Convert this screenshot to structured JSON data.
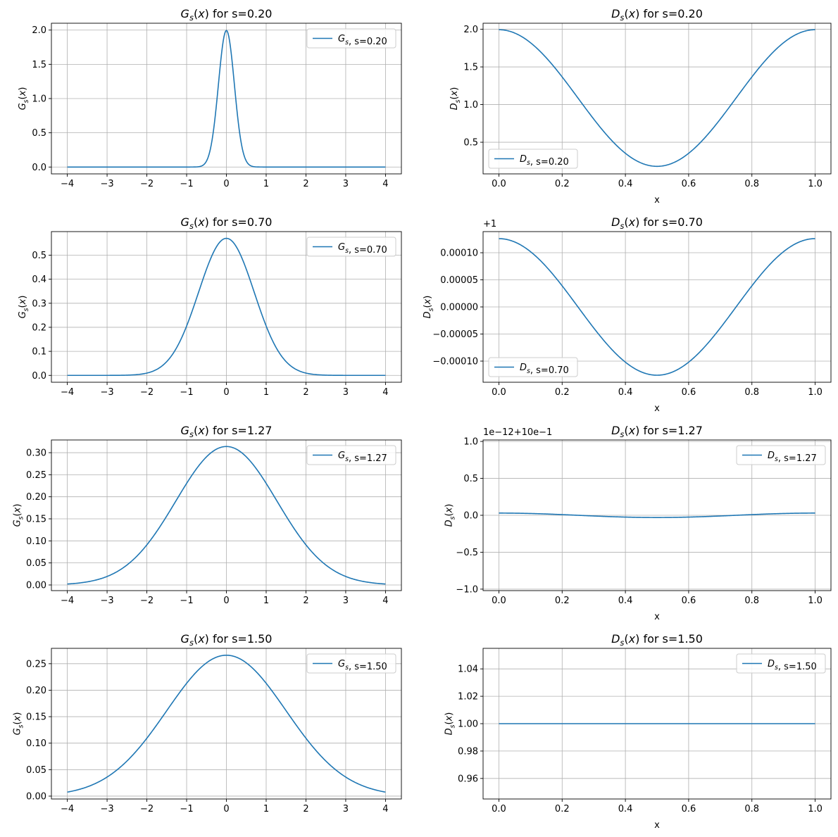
{
  "colors": {
    "line": "#1f77b4",
    "grid": "#b0b0b0",
    "axes": "#000000",
    "legend_border": "#cccccc"
  },
  "chart_data": [
    {
      "id": "g-s020",
      "type": "line",
      "kind": "gauss",
      "s": 0.2,
      "title": {
        "italic": "G",
        "sub": "s",
        "arg": "(x)",
        "rest": " for s=0.20"
      },
      "ylabel": {
        "italic": "G",
        "sub": "s",
        "arg": "(x)"
      },
      "xlabel": "",
      "xlim": [
        -4.4,
        4.4
      ],
      "ylim": [
        -0.1,
        2.1
      ],
      "xticks": [
        -4,
        -3,
        -2,
        -1,
        0,
        1,
        2,
        3,
        4
      ],
      "xtick_labels": [
        "−4",
        "−3",
        "−2",
        "−1",
        "0",
        "1",
        "2",
        "3",
        "4"
      ],
      "yticks": [
        0.0,
        0.5,
        1.0,
        1.5,
        2.0
      ],
      "ytick_labels": [
        "0.0",
        "0.5",
        "1.0",
        "1.5",
        "2.0"
      ],
      "y_offset_text": "",
      "grid": true,
      "legend": {
        "loc": "upper right",
        "italic": "G",
        "sub": "s",
        "rest": ", s=0.20"
      },
      "series": [
        {
          "name": "Gs, s=0.20",
          "x_range": [
            -4,
            4
          ],
          "peak_value": 1.995
        }
      ]
    },
    {
      "id": "d-s020",
      "type": "line",
      "kind": "cos",
      "s": 0.2,
      "title": {
        "italic": "D",
        "sub": "s",
        "arg": "(x)",
        "rest": " for s=0.20"
      },
      "ylabel": {
        "italic": "D",
        "sub": "s",
        "arg": "(x)"
      },
      "xlabel": "x",
      "xlim": [
        -0.05,
        1.05
      ],
      "ylim": [
        0.08,
        2.08
      ],
      "xticks": [
        0.0,
        0.2,
        0.4,
        0.6,
        0.8,
        1.0
      ],
      "xtick_labels": [
        "0.0",
        "0.2",
        "0.4",
        "0.6",
        "0.8",
        "1.0"
      ],
      "yticks": [
        0.5,
        1.0,
        1.5,
        2.0
      ],
      "ytick_labels": [
        "0.5",
        "1.0",
        "1.5",
        "2.0"
      ],
      "y_offset_text": "",
      "grid": true,
      "legend": {
        "loc": "lower left",
        "italic": "D",
        "sub": "s",
        "rest": ", s=0.20"
      },
      "series": [
        {
          "name": "Ds, s=0.20",
          "x_range": [
            0,
            1
          ],
          "center": 1.087,
          "amplitude": 0.907
        }
      ]
    },
    {
      "id": "g-s070",
      "type": "line",
      "kind": "gauss",
      "s": 0.7,
      "title": {
        "italic": "G",
        "sub": "s",
        "arg": "(x)",
        "rest": " for s=0.70"
      },
      "ylabel": {
        "italic": "G",
        "sub": "s",
        "arg": "(x)"
      },
      "xlabel": "",
      "xlim": [
        -4.4,
        4.4
      ],
      "ylim": [
        -0.0285,
        0.598
      ],
      "xticks": [
        -4,
        -3,
        -2,
        -1,
        0,
        1,
        2,
        3,
        4
      ],
      "xtick_labels": [
        "−4",
        "−3",
        "−2",
        "−1",
        "0",
        "1",
        "2",
        "3",
        "4"
      ],
      "yticks": [
        0.0,
        0.1,
        0.2,
        0.3,
        0.4,
        0.5
      ],
      "ytick_labels": [
        "0.0",
        "0.1",
        "0.2",
        "0.3",
        "0.4",
        "0.5"
      ],
      "y_offset_text": "",
      "grid": true,
      "legend": {
        "loc": "upper right",
        "italic": "G",
        "sub": "s",
        "rest": ", s=0.70"
      },
      "series": [
        {
          "name": "Gs, s=0.70",
          "x_range": [
            -4,
            4
          ],
          "peak_value": 0.57
        }
      ]
    },
    {
      "id": "d-s070",
      "type": "line",
      "kind": "cos",
      "s": 0.7,
      "title": {
        "italic": "D",
        "sub": "s",
        "arg": "(x)",
        "rest": " for s=0.70"
      },
      "ylabel": {
        "italic": "D",
        "sub": "s",
        "arg": "(x)"
      },
      "xlabel": "x",
      "xlim": [
        -0.05,
        1.05
      ],
      "ylim": [
        -0.000139,
        0.000139
      ],
      "xticks": [
        0.0,
        0.2,
        0.4,
        0.6,
        0.8,
        1.0
      ],
      "xtick_labels": [
        "0.0",
        "0.2",
        "0.4",
        "0.6",
        "0.8",
        "1.0"
      ],
      "yticks": [
        -0.0001,
        -5e-05,
        0.0,
        5e-05,
        0.0001
      ],
      "ytick_labels": [
        "−0.00010",
        "−0.00005",
        "0.00000",
        "0.00005",
        "0.00010"
      ],
      "y_offset_text": "+1",
      "grid": true,
      "legend": {
        "loc": "lower left",
        "italic": "D",
        "sub": "s",
        "rest": ", s=0.70"
      },
      "series": [
        {
          "name": "Ds, s=0.70",
          "x_range": [
            0,
            1
          ],
          "center": 0.0,
          "amplitude": 0.000126
        }
      ]
    },
    {
      "id": "g-s127",
      "type": "line",
      "kind": "gauss",
      "s": 1.27,
      "title": {
        "italic": "G",
        "sub": "s",
        "arg": "(x)",
        "rest": " for s=1.27"
      },
      "ylabel": {
        "italic": "G",
        "sub": "s",
        "arg": "(x)"
      },
      "xlabel": "",
      "xlim": [
        -4.4,
        4.4
      ],
      "ylim": [
        -0.0128,
        0.3288
      ],
      "xticks": [
        -4,
        -3,
        -2,
        -1,
        0,
        1,
        2,
        3,
        4
      ],
      "xtick_labels": [
        "−4",
        "−3",
        "−2",
        "−1",
        "0",
        "1",
        "2",
        "3",
        "4"
      ],
      "yticks": [
        0.0,
        0.05,
        0.1,
        0.15,
        0.2,
        0.25,
        0.3
      ],
      "ytick_labels": [
        "0.00",
        "0.05",
        "0.10",
        "0.15",
        "0.20",
        "0.25",
        "0.30"
      ],
      "y_offset_text": "",
      "grid": true,
      "legend": {
        "loc": "upper right",
        "italic": "G",
        "sub": "s",
        "rest": ", s=1.27"
      },
      "series": [
        {
          "name": "Gs, s=1.27",
          "x_range": [
            -4,
            4
          ],
          "peak_value": 0.314
        }
      ]
    },
    {
      "id": "d-s127",
      "type": "line",
      "kind": "cos",
      "s": 1.27,
      "title": {
        "italic": "D",
        "sub": "s",
        "arg": "(x)",
        "rest": " for s=1.27"
      },
      "ylabel": {
        "italic": "D",
        "sub": "s",
        "arg": "(x)"
      },
      "xlabel": "x",
      "xlim": [
        -0.05,
        1.05
      ],
      "ylim": [
        -1.02,
        1.02
      ],
      "xticks": [
        0.0,
        0.2,
        0.4,
        0.6,
        0.8,
        1.0
      ],
      "xtick_labels": [
        "0.0",
        "0.2",
        "0.4",
        "0.6",
        "0.8",
        "1.0"
      ],
      "yticks": [
        -1.0,
        -0.5,
        0.0,
        0.5,
        1.0
      ],
      "ytick_labels": [
        "−1.0",
        "−0.5",
        "0.0",
        "0.5",
        "1.0"
      ],
      "y_offset_text": "1e−12+10e−1",
      "grid": true,
      "legend": {
        "loc": "upper right",
        "italic": "D",
        "sub": "s",
        "rest": ", s=1.27"
      },
      "series": [
        {
          "name": "Ds, s=1.27",
          "x_range": [
            0,
            1
          ],
          "center": 0.0,
          "amplitude": 0.03
        }
      ]
    },
    {
      "id": "g-s150",
      "type": "line",
      "kind": "gauss",
      "s": 1.5,
      "title": {
        "italic": "G",
        "sub": "s",
        "arg": "(x)",
        "rest": " for s=1.50"
      },
      "ylabel": {
        "italic": "G",
        "sub": "s",
        "arg": "(x)"
      },
      "xlabel": "",
      "xlim": [
        -4.4,
        4.4
      ],
      "ylim": [
        -0.0054,
        0.279
      ],
      "xticks": [
        -4,
        -3,
        -2,
        -1,
        0,
        1,
        2,
        3,
        4
      ],
      "xtick_labels": [
        "−4",
        "−3",
        "−2",
        "−1",
        "0",
        "1",
        "2",
        "3",
        "4"
      ],
      "yticks": [
        0.0,
        0.05,
        0.1,
        0.15,
        0.2,
        0.25
      ],
      "ytick_labels": [
        "0.00",
        "0.05",
        "0.10",
        "0.15",
        "0.20",
        "0.25"
      ],
      "y_offset_text": "",
      "grid": true,
      "legend": {
        "loc": "upper right",
        "italic": "G",
        "sub": "s",
        "rest": ", s=1.50"
      },
      "series": [
        {
          "name": "Gs, s=1.50",
          "x_range": [
            -4,
            4
          ],
          "peak_value": 0.266
        }
      ]
    },
    {
      "id": "d-s150",
      "type": "line",
      "kind": "cos",
      "s": 1.5,
      "title": {
        "italic": "D",
        "sub": "s",
        "arg": "(x)",
        "rest": " for s=1.50"
      },
      "ylabel": {
        "italic": "D",
        "sub": "s",
        "arg": "(x)"
      },
      "xlabel": "x",
      "xlim": [
        -0.05,
        1.05
      ],
      "ylim": [
        0.945,
        1.055
      ],
      "xticks": [
        0.0,
        0.2,
        0.4,
        0.6,
        0.8,
        1.0
      ],
      "xtick_labels": [
        "0.0",
        "0.2",
        "0.4",
        "0.6",
        "0.8",
        "1.0"
      ],
      "yticks": [
        0.96,
        0.98,
        1.0,
        1.02,
        1.04
      ],
      "ytick_labels": [
        "0.96",
        "0.98",
        "1.00",
        "1.02",
        "1.04"
      ],
      "y_offset_text": "",
      "grid": true,
      "legend": {
        "loc": "upper right",
        "italic": "D",
        "sub": "s",
        "rest": ", s=1.50"
      },
      "series": [
        {
          "name": "Ds, s=1.50",
          "x_range": [
            0,
            1
          ],
          "center": 1.0,
          "amplitude": 0.0
        }
      ]
    }
  ]
}
